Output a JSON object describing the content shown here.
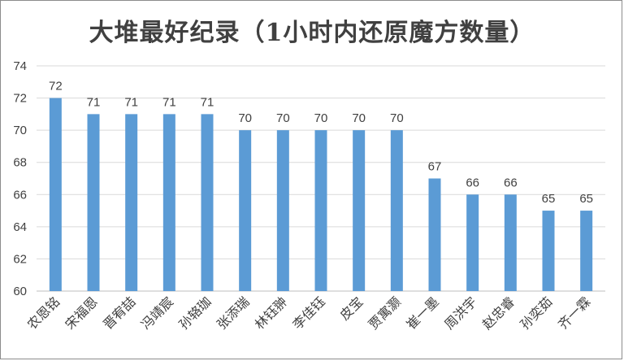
{
  "chart_data": {
    "type": "bar",
    "title": "大堆最好纪录（1小时内还原魔方数量）",
    "xlabel": "",
    "ylabel": "",
    "categories": [
      "农恩铭",
      "宋福恩",
      "晋宥喆",
      "冯靖宸",
      "孙辂珈",
      "张添瑞",
      "林钰翀",
      "李佳钰",
      "皮宝",
      "贾寓灏",
      "崔一墨",
      "周洪宇",
      "赵忠睿",
      "孙奕茹",
      "齐一霖"
    ],
    "values": [
      72,
      71,
      71,
      71,
      71,
      70,
      70,
      70,
      70,
      70,
      67,
      66,
      66,
      65,
      65
    ],
    "ylim": [
      60,
      74
    ],
    "yticks": [
      60,
      62,
      64,
      66,
      68,
      70,
      72,
      74
    ],
    "grid": true,
    "legend": "none",
    "bar_color": "#5b9bd5",
    "grid_color": "#d9d9d9",
    "text_color": "#404040"
  }
}
